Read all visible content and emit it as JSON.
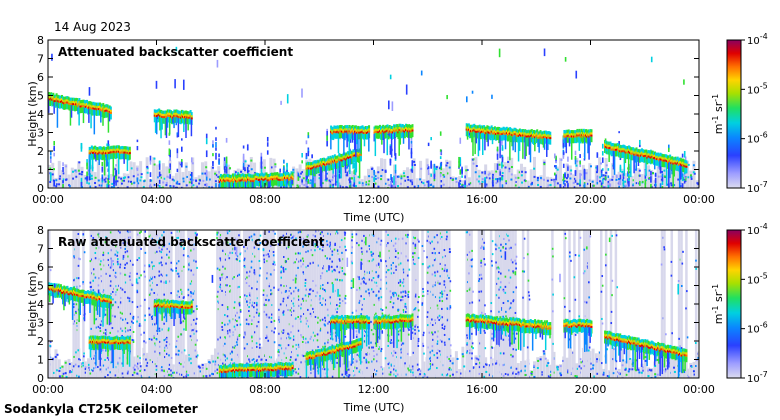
{
  "header": {
    "date": "14 Aug 2023"
  },
  "footer": {
    "instrument": "Sodankyla CT25K ceilometer"
  },
  "colors": {
    "background": "#ffffff",
    "panel_background": "#ffffff",
    "noise_floor": "#d6d6e8",
    "colormap": [
      "#dcdcf0",
      "#8c8cff",
      "#1f3cff",
      "#0a80ff",
      "#00c8ff",
      "#00e0a0",
      "#30e030",
      "#c8e000",
      "#ffd000",
      "#ff7000",
      "#e00000",
      "#900060"
    ]
  },
  "chart_data": [
    {
      "type": "heatmap",
      "title": "Attenuated backscatter coefficient",
      "xlabel": "Time (UTC)",
      "ylabel": "Height (km)",
      "xlim": [
        "00:00",
        "00:00"
      ],
      "x_ticks": [
        "00:00",
        "04:00",
        "08:00",
        "12:00",
        "16:00",
        "20:00",
        "00:00"
      ],
      "ylim": [
        0,
        8
      ],
      "y_ticks": [
        "0",
        "1",
        "2",
        "3",
        "4",
        "5",
        "6",
        "7",
        "8"
      ],
      "colorbar": {
        "label": "m-1 sr-1",
        "scale": "log",
        "range": [
          1e-07,
          0.0001
        ],
        "ticks": [
          {
            "base": "10",
            "exp": "-4"
          },
          {
            "base": "10",
            "exp": "-5"
          },
          {
            "base": "10",
            "exp": "-6"
          },
          {
            "base": "10",
            "exp": "-7"
          }
        ]
      },
      "cloud_layers": [
        {
          "start_h": 0.0,
          "end_h": 2.3,
          "height_start_km": 4.8,
          "height_end_km": 4.1
        },
        {
          "start_h": 3.9,
          "end_h": 5.3,
          "height_start_km": 3.9,
          "height_end_km": 3.8
        },
        {
          "start_h": 1.5,
          "end_h": 3.0,
          "height_start_km": 1.9,
          "height_end_km": 1.9
        },
        {
          "start_h": 6.3,
          "end_h": 9.0,
          "height_start_km": 0.35,
          "height_end_km": 0.5
        },
        {
          "start_h": 9.5,
          "end_h": 11.5,
          "height_start_km": 1.0,
          "height_end_km": 1.8
        },
        {
          "start_h": 10.4,
          "end_h": 11.8,
          "height_start_km": 3.0,
          "height_end_km": 3.0
        },
        {
          "start_h": 12.0,
          "end_h": 13.4,
          "height_start_km": 3.0,
          "height_end_km": 3.1
        },
        {
          "start_h": 15.4,
          "end_h": 18.5,
          "height_start_km": 3.1,
          "height_end_km": 2.7
        },
        {
          "start_h": 19.0,
          "end_h": 20.0,
          "height_start_km": 2.8,
          "height_end_km": 2.8
        },
        {
          "start_h": 20.5,
          "end_h": 23.5,
          "height_start_km": 2.2,
          "height_end_km": 1.2
        }
      ]
    },
    {
      "type": "heatmap",
      "title": "Raw attenuated backscatter coefficient",
      "xlabel": "Time (UTC)",
      "ylabel": "Height (km)",
      "xlim": [
        "00:00",
        "00:00"
      ],
      "x_ticks": [
        "00:00",
        "04:00",
        "08:00",
        "12:00",
        "16:00",
        "20:00",
        "00:00"
      ],
      "ylim": [
        0,
        8
      ],
      "y_ticks": [
        "0",
        "1",
        "2",
        "3",
        "4",
        "5",
        "6",
        "7",
        "8"
      ],
      "colorbar": {
        "label": "m-1 sr-1",
        "scale": "log",
        "range": [
          1e-07,
          0.0001
        ],
        "ticks": [
          {
            "base": "10",
            "exp": "-4"
          },
          {
            "base": "10",
            "exp": "-5"
          },
          {
            "base": "10",
            "exp": "-6"
          },
          {
            "base": "10",
            "exp": "-7"
          }
        ]
      },
      "cloud_layers": [
        {
          "start_h": 0.0,
          "end_h": 2.3,
          "height_start_km": 4.8,
          "height_end_km": 4.1
        },
        {
          "start_h": 3.9,
          "end_h": 5.3,
          "height_start_km": 3.9,
          "height_end_km": 3.8
        },
        {
          "start_h": 1.5,
          "end_h": 3.0,
          "height_start_km": 1.9,
          "height_end_km": 1.9
        },
        {
          "start_h": 6.3,
          "end_h": 9.0,
          "height_start_km": 0.35,
          "height_end_km": 0.5
        },
        {
          "start_h": 9.5,
          "end_h": 11.5,
          "height_start_km": 1.0,
          "height_end_km": 1.8
        },
        {
          "start_h": 10.4,
          "end_h": 11.8,
          "height_start_km": 3.0,
          "height_end_km": 3.0
        },
        {
          "start_h": 12.0,
          "end_h": 13.4,
          "height_start_km": 3.0,
          "height_end_km": 3.1
        },
        {
          "start_h": 15.4,
          "end_h": 18.5,
          "height_start_km": 3.1,
          "height_end_km": 2.7
        },
        {
          "start_h": 19.0,
          "end_h": 20.0,
          "height_start_km": 2.8,
          "height_end_km": 2.8
        },
        {
          "start_h": 20.5,
          "end_h": 23.5,
          "height_start_km": 2.2,
          "height_end_km": 1.2
        }
      ],
      "noise_segments": [
        {
          "start_h": 0.0,
          "end_h": 0.8,
          "density": 0.25
        },
        {
          "start_h": 0.9,
          "end_h": 5.4,
          "density": 0.85
        },
        {
          "start_h": 6.2,
          "end_h": 14.8,
          "density": 0.9
        },
        {
          "start_h": 15.3,
          "end_h": 17.2,
          "density": 0.75
        },
        {
          "start_h": 17.2,
          "end_h": 21.0,
          "density": 0.35
        },
        {
          "start_h": 22.5,
          "end_h": 24.0,
          "density": 0.3
        }
      ]
    }
  ]
}
